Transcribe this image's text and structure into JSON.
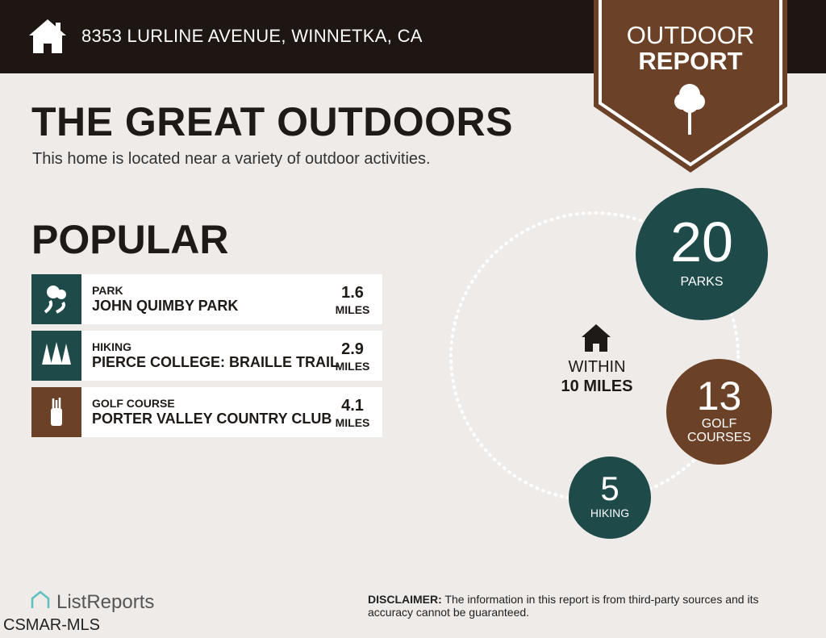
{
  "header": {
    "address": "8353 LURLINE AVENUE, WINNETKA, CA",
    "icon": "home-icon"
  },
  "badge": {
    "line1": "OUTDOOR",
    "line2": "REPORT",
    "icon": "tree-icon"
  },
  "main": {
    "title": "THE GREAT OUTDOORS",
    "subtitle": "This home is located near a variety of outdoor activities.",
    "section": "POPULAR"
  },
  "popular": [
    {
      "category": "PARK",
      "name": "JOHN QUIMBY PARK",
      "distance": "1.6",
      "unit": "MILES",
      "icon": "park-icon",
      "color": "#1f4a4a"
    },
    {
      "category": "HIKING",
      "name": "PIERCE COLLEGE: BRAILLE TRAIL",
      "distance": "2.9",
      "unit": "MILES",
      "icon": "pine-trees-icon",
      "color": "#1f4a4a"
    },
    {
      "category": "GOLF COURSE",
      "name": "PORTER VALLEY COUNTRY CLUB",
      "distance": "4.1",
      "unit": "MILES",
      "icon": "golf-bag-icon",
      "color": "#6b4128"
    }
  ],
  "summary": {
    "within1": "WITHIN",
    "within2": "10 MILES",
    "parks": {
      "count": "20",
      "label": "PARKS"
    },
    "golf": {
      "count": "13",
      "label1": "GOLF",
      "label2": "COURSES"
    },
    "hiking": {
      "count": "5",
      "label": "HIKING"
    }
  },
  "footer": {
    "logo": "ListReports",
    "watermark": "CSMAR-MLS",
    "disclaimer_label": "DISCLAIMER:",
    "disclaimer": " The information in this report is from third-party sources and its accuracy cannot be guaranteed."
  },
  "colors": {
    "header": "#1e1612",
    "teal": "#1f4a4a",
    "brown": "#6b4128",
    "background": "#efebe8"
  }
}
